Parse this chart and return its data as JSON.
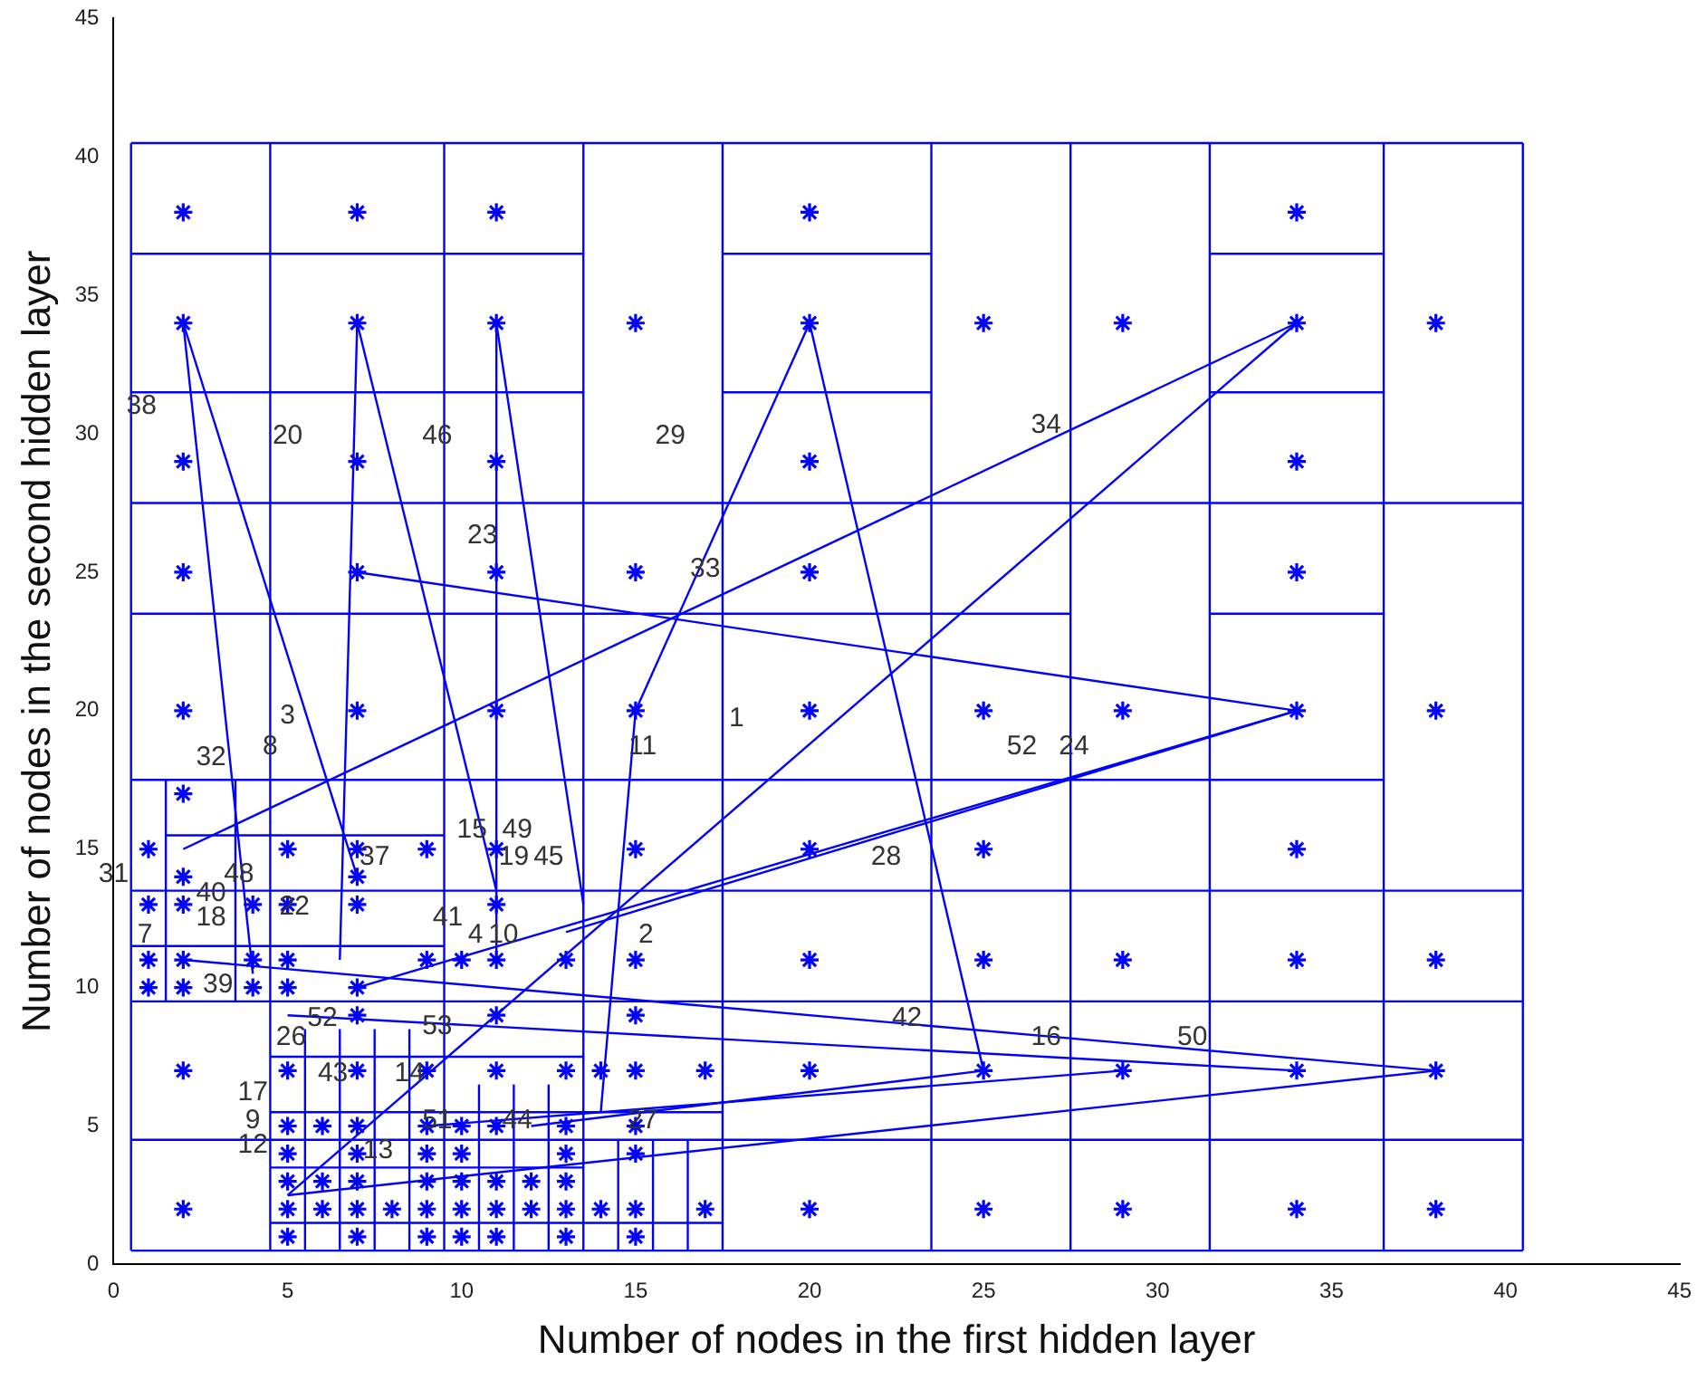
{
  "chart_data": {
    "type": "scatter",
    "xlabel": "Number of nodes in the first hidden layer",
    "ylabel": "Number of nodes in the second hidden layer",
    "xlim": [
      0,
      45
    ],
    "ylim": [
      0,
      45
    ],
    "xticks": [
      0,
      5,
      10,
      15,
      20,
      25,
      30,
      35,
      40,
      45
    ],
    "yticks": [
      0,
      5,
      10,
      15,
      20,
      25,
      30,
      35,
      40,
      45
    ],
    "grid": false,
    "legend": false,
    "series": [
      {
        "type": "line",
        "color": "#0000ff",
        "marker": "none",
        "x": [
          0.5,
          40.5
        ],
        "values": [
          0.5,
          0.5
        ]
      },
      {
        "type": "line",
        "color": "#0000ff",
        "marker": "none",
        "x": [
          0.5,
          40.5
        ],
        "values": [
          40.5,
          40.5
        ]
      },
      {
        "type": "line",
        "color": "#0000ff",
        "marker": "none",
        "x": [
          0.5,
          0.5
        ],
        "values": [
          0.5,
          40.5
        ]
      },
      {
        "type": "line",
        "color": "#0000ff",
        "marker": "none",
        "x": [
          40.5,
          40.5
        ],
        "values": [
          0.5,
          40.5
        ]
      },
      {
        "type": "line",
        "color": "#0000ff",
        "marker": "none",
        "x": [
          0.5,
          13.5
        ],
        "values": [
          36.5,
          36.5
        ]
      },
      {
        "type": "line",
        "color": "#0000ff",
        "marker": "none",
        "x": [
          17.5,
          23.5
        ],
        "values": [
          36.5,
          36.5
        ]
      },
      {
        "type": "line",
        "color": "#0000ff",
        "marker": "none",
        "x": [
          31.5,
          36.5
        ],
        "values": [
          36.5,
          36.5
        ]
      },
      {
        "type": "line",
        "color": "#0000ff",
        "marker": "none",
        "x": [
          0.5,
          13.5
        ],
        "values": [
          31.5,
          31.5
        ]
      },
      {
        "type": "line",
        "color": "#0000ff",
        "marker": "none",
        "x": [
          17.5,
          23.5
        ],
        "values": [
          31.5,
          31.5
        ]
      },
      {
        "type": "line",
        "color": "#0000ff",
        "marker": "none",
        "x": [
          31.5,
          36.5
        ],
        "values": [
          31.5,
          31.5
        ]
      },
      {
        "type": "line",
        "color": "#0000ff",
        "marker": "none",
        "x": [
          0.5,
          40.5
        ],
        "values": [
          27.5,
          27.5
        ]
      },
      {
        "type": "line",
        "color": "#0000ff",
        "marker": "none",
        "x": [
          0.5,
          27.5
        ],
        "values": [
          23.5,
          23.5
        ]
      },
      {
        "type": "line",
        "color": "#0000ff",
        "marker": "none",
        "x": [
          31.5,
          36.5
        ],
        "values": [
          23.5,
          23.5
        ]
      },
      {
        "type": "line",
        "color": "#0000ff",
        "marker": "none",
        "x": [
          0.5,
          36.5
        ],
        "values": [
          17.5,
          17.5
        ]
      },
      {
        "type": "line",
        "color": "#0000ff",
        "marker": "none",
        "x": [
          0.5,
          40.5
        ],
        "values": [
          13.5,
          13.5
        ]
      },
      {
        "type": "line",
        "color": "#0000ff",
        "marker": "none",
        "x": [
          0.5,
          40.5
        ],
        "values": [
          9.5,
          9.5
        ]
      },
      {
        "type": "line",
        "color": "#0000ff",
        "marker": "none",
        "x": [
          0.5,
          40.5
        ],
        "values": [
          4.5,
          4.5
        ]
      },
      {
        "type": "line",
        "color": "#0000ff",
        "marker": "none",
        "x": [
          4.5,
          4.5
        ],
        "values": [
          0.5,
          40.5
        ]
      },
      {
        "type": "line",
        "color": "#0000ff",
        "marker": "none",
        "x": [
          9.5,
          9.5
        ],
        "values": [
          0.5,
          40.5
        ]
      },
      {
        "type": "line",
        "color": "#0000ff",
        "marker": "none",
        "x": [
          13.5,
          13.5
        ],
        "values": [
          0.5,
          40.5
        ]
      },
      {
        "type": "line",
        "color": "#0000ff",
        "marker": "none",
        "x": [
          17.5,
          17.5
        ],
        "values": [
          0.5,
          40.5
        ]
      },
      {
        "type": "line",
        "color": "#0000ff",
        "marker": "none",
        "x": [
          23.5,
          23.5
        ],
        "values": [
          0.5,
          40.5
        ]
      },
      {
        "type": "line",
        "color": "#0000ff",
        "marker": "none",
        "x": [
          27.5,
          27.5
        ],
        "values": [
          0.5,
          40.5
        ]
      },
      {
        "type": "line",
        "color": "#0000ff",
        "marker": "none",
        "x": [
          31.5,
          31.5
        ],
        "values": [
          0.5,
          40.5
        ]
      },
      {
        "type": "line",
        "color": "#0000ff",
        "marker": "none",
        "x": [
          36.5,
          36.5
        ],
        "values": [
          0.5,
          40.5
        ]
      },
      {
        "type": "line",
        "color": "#0000ff",
        "marker": "none",
        "x": [
          1.5,
          1.5
        ],
        "values": [
          9.5,
          17.5
        ]
      },
      {
        "type": "line",
        "color": "#0000ff",
        "marker": "none",
        "x": [
          3.5,
          3.5
        ],
        "values": [
          9.5,
          17.5
        ]
      },
      {
        "type": "line",
        "color": "#0000ff",
        "marker": "none",
        "x": [
          4.5,
          17.5
        ],
        "values": [
          1.5,
          1.5
        ]
      },
      {
        "type": "line",
        "color": "#0000ff",
        "marker": "none",
        "x": [
          4.5,
          13.5
        ],
        "values": [
          3.5,
          3.5
        ]
      },
      {
        "type": "line",
        "color": "#0000ff",
        "marker": "none",
        "x": [
          4.5,
          17.5
        ],
        "values": [
          5.5,
          5.5
        ]
      },
      {
        "type": "line",
        "color": "#0000ff",
        "marker": "none",
        "x": [
          4.5,
          13.5
        ],
        "values": [
          7.5,
          7.5
        ]
      },
      {
        "type": "line",
        "color": "#0000ff",
        "marker": "none",
        "x": [
          0.5,
          9.5
        ],
        "values": [
          11.5,
          11.5
        ]
      },
      {
        "type": "line",
        "color": "#0000ff",
        "marker": "none",
        "x": [
          1.5,
          9.5
        ],
        "values": [
          15.5,
          15.5
        ]
      },
      {
        "type": "line",
        "color": "#0000ff",
        "marker": "none",
        "x": [
          5.5,
          5.5
        ],
        "values": [
          0.5,
          8.5
        ]
      },
      {
        "type": "line",
        "color": "#0000ff",
        "marker": "none",
        "x": [
          6.5,
          6.5
        ],
        "values": [
          0.5,
          8.5
        ]
      },
      {
        "type": "line",
        "color": "#0000ff",
        "marker": "none",
        "x": [
          7.5,
          7.5
        ],
        "values": [
          0.5,
          8.5
        ]
      },
      {
        "type": "line",
        "color": "#0000ff",
        "marker": "none",
        "x": [
          8.5,
          8.5
        ],
        "values": [
          0.5,
          8.5
        ]
      },
      {
        "type": "line",
        "color": "#0000ff",
        "marker": "none",
        "x": [
          10.5,
          10.5
        ],
        "values": [
          0.5,
          6.5
        ]
      },
      {
        "type": "line",
        "color": "#0000ff",
        "marker": "none",
        "x": [
          11.5,
          11.5
        ],
        "values": [
          0.5,
          6.5
        ]
      },
      {
        "type": "line",
        "color": "#0000ff",
        "marker": "none",
        "x": [
          12.5,
          12.5
        ],
        "values": [
          0.5,
          6.5
        ]
      },
      {
        "type": "line",
        "color": "#0000ff",
        "marker": "none",
        "x": [
          14.5,
          14.5
        ],
        "values": [
          0.5,
          4.5
        ]
      },
      {
        "type": "line",
        "color": "#0000ff",
        "marker": "none",
        "x": [
          15.5,
          15.5
        ],
        "values": [
          0.5,
          4.5
        ]
      },
      {
        "type": "line",
        "color": "#0000ff",
        "marker": "none",
        "x": [
          16.5,
          16.5
        ],
        "values": [
          0.5,
          4.5
        ]
      },
      {
        "type": "line",
        "color": "#0000ff",
        "marker": "none",
        "x": [
          2,
          4
        ],
        "values": [
          34,
          10.5
        ]
      },
      {
        "type": "line",
        "color": "#0000ff",
        "marker": "none",
        "x": [
          2,
          7
        ],
        "values": [
          34,
          14
        ]
      },
      {
        "type": "line",
        "color": "#0000ff",
        "marker": "none",
        "x": [
          7,
          6.5
        ],
        "values": [
          34,
          11
        ]
      },
      {
        "type": "line",
        "color": "#0000ff",
        "marker": "none",
        "x": [
          7,
          11
        ],
        "values": [
          34,
          13.5
        ]
      },
      {
        "type": "line",
        "color": "#0000ff",
        "marker": "none",
        "x": [
          11,
          11
        ],
        "values": [
          34,
          11
        ]
      },
      {
        "type": "line",
        "color": "#0000ff",
        "marker": "none",
        "x": [
          11,
          13.5
        ],
        "values": [
          34,
          13
        ]
      },
      {
        "type": "line",
        "color": "#0000ff",
        "marker": "none",
        "x": [
          20,
          15,
          14
        ],
        "values": [
          34,
          20,
          5.5
        ]
      },
      {
        "type": "line",
        "color": "#0000ff",
        "marker": "none",
        "x": [
          20,
          25
        ],
        "values": [
          34,
          7
        ]
      },
      {
        "type": "line",
        "color": "#0000ff",
        "marker": "none",
        "x": [
          34,
          2
        ],
        "values": [
          34,
          15
        ]
      },
      {
        "type": "line",
        "color": "#0000ff",
        "marker": "none",
        "x": [
          34,
          5
        ],
        "values": [
          34,
          2.5
        ]
      },
      {
        "type": "line",
        "color": "#0000ff",
        "marker": "none",
        "x": [
          7,
          34
        ],
        "values": [
          25,
          20
        ]
      },
      {
        "type": "line",
        "color": "#0000ff",
        "marker": "none",
        "x": [
          34,
          13
        ],
        "values": [
          20,
          12
        ]
      },
      {
        "type": "line",
        "color": "#0000ff",
        "marker": "none",
        "x": [
          34,
          7
        ],
        "values": [
          20,
          10
        ]
      },
      {
        "type": "line",
        "color": "#0000ff",
        "marker": "none",
        "x": [
          38,
          2
        ],
        "values": [
          7,
          11
        ]
      },
      {
        "type": "line",
        "color": "#0000ff",
        "marker": "none",
        "x": [
          38,
          5
        ],
        "values": [
          7,
          2.5
        ]
      },
      {
        "type": "line",
        "color": "#0000ff",
        "marker": "none",
        "x": [
          34,
          5
        ],
        "values": [
          7,
          9
        ]
      },
      {
        "type": "line",
        "color": "#0000ff",
        "marker": "none",
        "x": [
          29,
          9
        ],
        "values": [
          7,
          5
        ]
      },
      {
        "type": "line",
        "color": "#0000ff",
        "marker": "none",
        "x": [
          25,
          12
        ],
        "values": [
          7,
          5
        ]
      },
      {
        "type": "scatter",
        "color": "#0000ff",
        "marker": "cross",
        "x": [
          2,
          7,
          11,
          20,
          34,
          2,
          7,
          11,
          15,
          20,
          25,
          29,
          34,
          38,
          2,
          7,
          11,
          20,
          34,
          2,
          7,
          11,
          15,
          20,
          34,
          2,
          7,
          11,
          15,
          20,
          25,
          29,
          34,
          38,
          2,
          1,
          5,
          7,
          9,
          11,
          15,
          20,
          25,
          34,
          2,
          7,
          1,
          2,
          4,
          5,
          7,
          11,
          1,
          2,
          4,
          5,
          9,
          10,
          11,
          13,
          15,
          20,
          25,
          29,
          34,
          38,
          1,
          2,
          4,
          5,
          7,
          7,
          11,
          15,
          2,
          5,
          7,
          9,
          11,
          13,
          14,
          15,
          17,
          20,
          25,
          29,
          34,
          38,
          5,
          6,
          7,
          9,
          10,
          11,
          13,
          15,
          5,
          7,
          9,
          10,
          13,
          15,
          5,
          6,
          7,
          9,
          10,
          11,
          12,
          13,
          2,
          5,
          6,
          7,
          8,
          9,
          10,
          11,
          12,
          13,
          14,
          15,
          17,
          20,
          25,
          29,
          34,
          38,
          5,
          7,
          9,
          10,
          11,
          13,
          15
        ],
        "values": [
          38,
          38,
          38,
          38,
          38,
          34,
          34,
          34,
          34,
          34,
          34,
          34,
          34,
          34,
          29,
          29,
          29,
          29,
          29,
          25,
          25,
          25,
          25,
          25,
          25,
          20,
          20,
          20,
          20,
          20,
          20,
          20,
          20,
          20,
          17,
          15,
          15,
          15,
          15,
          15,
          15,
          15,
          15,
          15,
          14,
          14,
          13,
          13,
          13,
          13,
          13,
          13,
          11,
          11,
          11,
          11,
          11,
          11,
          11,
          11,
          11,
          11,
          11,
          11,
          11,
          11,
          10,
          10,
          10,
          10,
          10,
          9,
          9,
          9,
          7,
          7,
          7,
          7,
          7,
          7,
          7,
          7,
          7,
          7,
          7,
          7,
          7,
          7,
          5,
          5,
          5,
          5,
          5,
          5,
          5,
          5,
          4,
          4,
          4,
          4,
          4,
          4,
          3,
          3,
          3,
          3,
          3,
          3,
          3,
          3,
          2,
          2,
          2,
          2,
          2,
          2,
          2,
          2,
          2,
          2,
          2,
          2,
          2,
          2,
          2,
          2,
          2,
          2,
          1,
          1,
          1,
          1,
          1,
          1,
          1
        ]
      }
    ],
    "annotations": [
      "38",
      "20",
      "46",
      "29",
      "34",
      "23",
      "33",
      "3",
      "8",
      "32",
      "11",
      "1",
      "52",
      "24",
      "15",
      "49",
      "19",
      "45",
      "28",
      "37",
      "31",
      "48",
      "40",
      "18",
      "22",
      "7",
      "41",
      "4",
      "10",
      "2",
      "39",
      "42",
      "16",
      "50",
      "53",
      "52",
      "26",
      "17",
      "43",
      "14",
      "9",
      "12",
      "51",
      "44",
      "27",
      "13"
    ]
  }
}
